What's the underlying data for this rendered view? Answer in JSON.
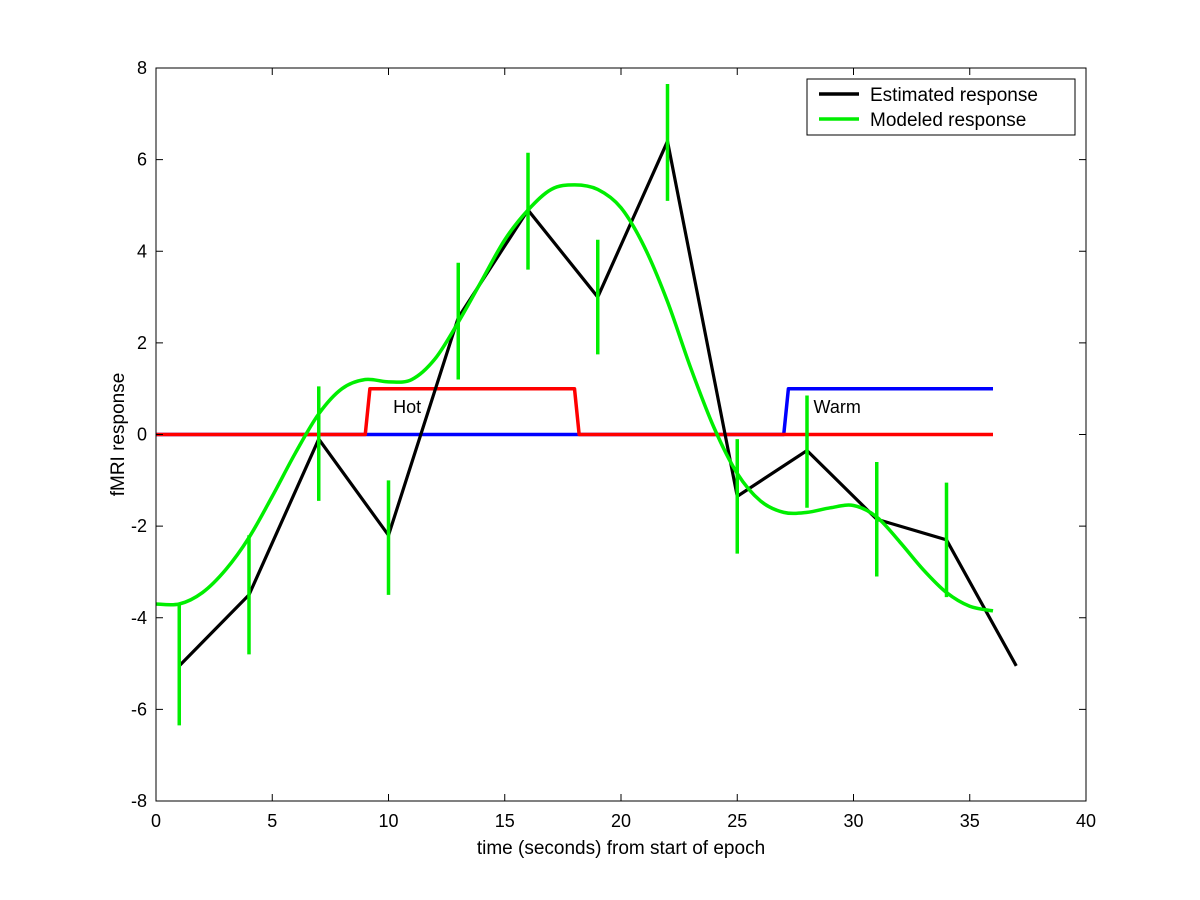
{
  "chart_data": {
    "type": "line",
    "title": "",
    "xlabel": "time (seconds) from start of epoch",
    "ylabel": "fMRI response",
    "xlim": [
      0,
      40
    ],
    "ylim": [
      -8,
      8
    ],
    "xticks": [
      0,
      5,
      10,
      15,
      20,
      25,
      30,
      35,
      40
    ],
    "yticks": [
      -8,
      -6,
      -4,
      -2,
      0,
      2,
      4,
      6,
      8
    ],
    "grid": false,
    "legend_position": "top-right",
    "colors": {
      "estimated": "#000000",
      "modeled": "#00ee00",
      "hot": "#ff0000",
      "warm": "#0000ff"
    },
    "series": [
      {
        "name": "Estimated response",
        "color": "#000000",
        "x": [
          1,
          4,
          7,
          10,
          13,
          16,
          19,
          22,
          25,
          28,
          31,
          34,
          37
        ],
        "y": [
          -5.05,
          -3.5,
          -0.1,
          -2.2,
          2.55,
          4.9,
          3.0,
          6.4,
          -1.35,
          -0.35,
          -1.85,
          -2.3,
          -5.05
        ]
      },
      {
        "name": "Modeled response",
        "color": "#00ee00",
        "x": [
          0,
          1,
          2,
          3,
          4,
          5,
          6,
          7,
          8,
          9,
          10,
          11,
          12,
          13,
          14,
          15,
          16,
          17,
          18,
          19,
          20,
          21,
          22,
          23,
          24,
          25,
          26,
          27,
          28,
          29,
          30,
          31,
          32,
          33,
          34,
          35,
          36
        ],
        "y": [
          -3.7,
          -3.7,
          -3.45,
          -2.95,
          -2.25,
          -1.35,
          -0.4,
          0.45,
          1.0,
          1.2,
          1.15,
          1.2,
          1.65,
          2.45,
          3.35,
          4.25,
          4.9,
          5.35,
          5.45,
          5.35,
          4.95,
          4.1,
          2.9,
          1.45,
          0.15,
          -0.85,
          -1.45,
          -1.7,
          -1.7,
          -1.6,
          -1.55,
          -1.8,
          -2.35,
          -2.95,
          -3.45,
          -3.75,
          -3.85
        ]
      }
    ],
    "error_bars": {
      "color": "#00ee00",
      "x": [
        1,
        4,
        7,
        10,
        13,
        16,
        19,
        22,
        25,
        28,
        31,
        34
      ],
      "low": [
        -6.35,
        -4.8,
        -1.45,
        -3.5,
        1.2,
        3.6,
        1.75,
        5.1,
        -2.6,
        -1.6,
        -3.1,
        -3.55
      ],
      "high": [
        -3.7,
        -2.2,
        1.05,
        -1.0,
        3.75,
        6.15,
        4.25,
        7.65,
        -0.1,
        0.85,
        -0.6,
        -1.05
      ]
    },
    "conditions": [
      {
        "label": "Hot",
        "color": "#ff0000",
        "x": [
          0,
          9,
          9.2,
          18,
          18.2,
          36
        ],
        "y": [
          0,
          0,
          1,
          1,
          0,
          0
        ]
      },
      {
        "label": "Warm",
        "color": "#0000ff",
        "x": [
          0,
          27,
          27.2,
          36
        ],
        "y": [
          0,
          0,
          1,
          1
        ]
      }
    ],
    "annotations": [
      {
        "text": "Hot",
        "x": 10.8,
        "y": 0.45
      },
      {
        "text": "Warm",
        "x": 29.3,
        "y": 0.45
      }
    ]
  }
}
